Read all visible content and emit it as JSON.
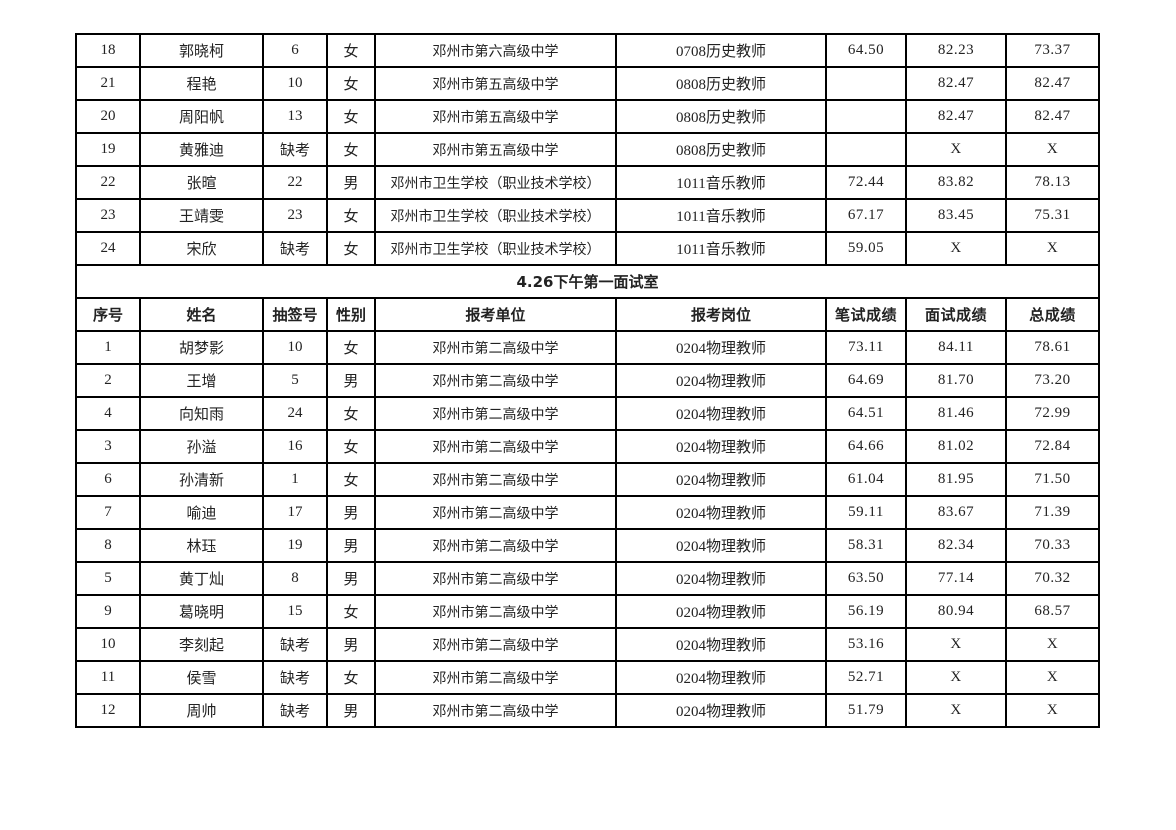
{
  "top_rows": [
    [
      "18",
      "郭晓柯",
      "6",
      "女",
      "邓州市第六高级中学",
      "0708历史教师",
      "64.50",
      "82.23",
      "73.37"
    ],
    [
      "21",
      "程艳",
      "10",
      "女",
      "邓州市第五高级中学",
      "0808历史教师",
      "",
      "82.47",
      "82.47"
    ],
    [
      "20",
      "周阳帆",
      "13",
      "女",
      "邓州市第五高级中学",
      "0808历史教师",
      "",
      "82.47",
      "82.47"
    ],
    [
      "19",
      "黄雅迪",
      "缺考",
      "女",
      "邓州市第五高级中学",
      "0808历史教师",
      "",
      "X",
      "X"
    ],
    [
      "22",
      "张暄",
      "22",
      "男",
      "邓州市卫生学校（职业技术学校）",
      "1011音乐教师",
      "72.44",
      "83.82",
      "78.13"
    ],
    [
      "23",
      "王靖雯",
      "23",
      "女",
      "邓州市卫生学校（职业技术学校）",
      "1011音乐教师",
      "67.17",
      "83.45",
      "75.31"
    ],
    [
      "24",
      "宋欣",
      "缺考",
      "女",
      "邓州市卫生学校（职业技术学校）",
      "1011音乐教师",
      "59.05",
      "X",
      "X"
    ]
  ],
  "section_title": "4.26下午第一面试室",
  "headers": [
    "序号",
    "姓名",
    "抽签号",
    "性别",
    "报考单位",
    "报考岗位",
    "笔试成绩",
    "面试成绩",
    "总成绩"
  ],
  "bottom_rows": [
    [
      "1",
      "胡梦影",
      "10",
      "女",
      "邓州市第二高级中学",
      "0204物理教师",
      "73.11",
      "84.11",
      "78.61"
    ],
    [
      "2",
      "王增",
      "5",
      "男",
      "邓州市第二高级中学",
      "0204物理教师",
      "64.69",
      "81.70",
      "73.20"
    ],
    [
      "4",
      "向知雨",
      "24",
      "女",
      "邓州市第二高级中学",
      "0204物理教师",
      "64.51",
      "81.46",
      "72.99"
    ],
    [
      "3",
      "孙溢",
      "16",
      "女",
      "邓州市第二高级中学",
      "0204物理教师",
      "64.66",
      "81.02",
      "72.84"
    ],
    [
      "6",
      "孙清新",
      "1",
      "女",
      "邓州市第二高级中学",
      "0204物理教师",
      "61.04",
      "81.95",
      "71.50"
    ],
    [
      "7",
      "喻迪",
      "17",
      "男",
      "邓州市第二高级中学",
      "0204物理教师",
      "59.11",
      "83.67",
      "71.39"
    ],
    [
      "8",
      "林珏",
      "19",
      "男",
      "邓州市第二高级中学",
      "0204物理教师",
      "58.31",
      "82.34",
      "70.33"
    ],
    [
      "5",
      "黄丁灿",
      "8",
      "男",
      "邓州市第二高级中学",
      "0204物理教师",
      "63.50",
      "77.14",
      "70.32"
    ],
    [
      "9",
      "葛晓明",
      "15",
      "女",
      "邓州市第二高级中学",
      "0204物理教师",
      "56.19",
      "80.94",
      "68.57"
    ],
    [
      "10",
      "李刻起",
      "缺考",
      "男",
      "邓州市第二高级中学",
      "0204物理教师",
      "53.16",
      "X",
      "X"
    ],
    [
      "11",
      "侯雪",
      "缺考",
      "女",
      "邓州市第二高级中学",
      "0204物理教师",
      "52.71",
      "X",
      "X"
    ],
    [
      "12",
      "周帅",
      "缺考",
      "男",
      "邓州市第二高级中学",
      "0204物理教师",
      "51.79",
      "X",
      "X"
    ]
  ]
}
